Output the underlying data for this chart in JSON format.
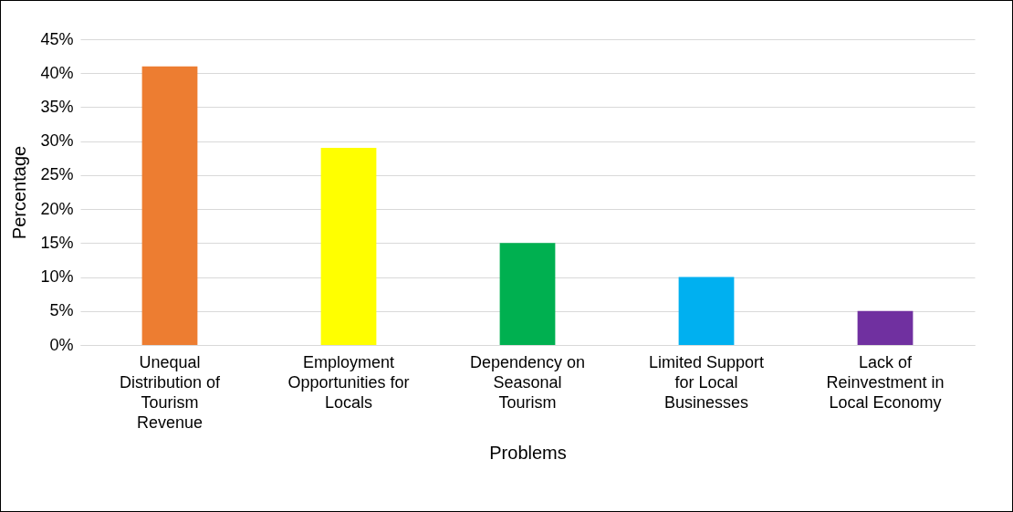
{
  "chart_data": {
    "type": "bar",
    "xlabel": "Problems",
    "ylabel": "Percentage",
    "categories": [
      "Unequal Distribution of Tourism Revenue",
      "Employment Opportunities for Locals",
      "Dependency on Seasonal Tourism",
      "Limited Support for Local Businesses",
      "Lack of Reinvestment in Local Economy"
    ],
    "values": [
      41,
      29,
      15,
      10,
      5
    ],
    "colors": [
      "#ed7d31",
      "#ffff00",
      "#00b050",
      "#00b0f0",
      "#7030a0"
    ],
    "ylim": [
      0,
      45
    ],
    "yticks": [
      {
        "value": 0,
        "label": "0%"
      },
      {
        "value": 5,
        "label": "5%"
      },
      {
        "value": 10,
        "label": "10%"
      },
      {
        "value": 15,
        "label": "15%"
      },
      {
        "value": 20,
        "label": "20%"
      },
      {
        "value": 25,
        "label": "25%"
      },
      {
        "value": 30,
        "label": "30%"
      },
      {
        "value": 35,
        "label": "35%"
      },
      {
        "value": 40,
        "label": "40%"
      },
      {
        "value": 45,
        "label": "45%"
      }
    ],
    "grid": "y"
  }
}
